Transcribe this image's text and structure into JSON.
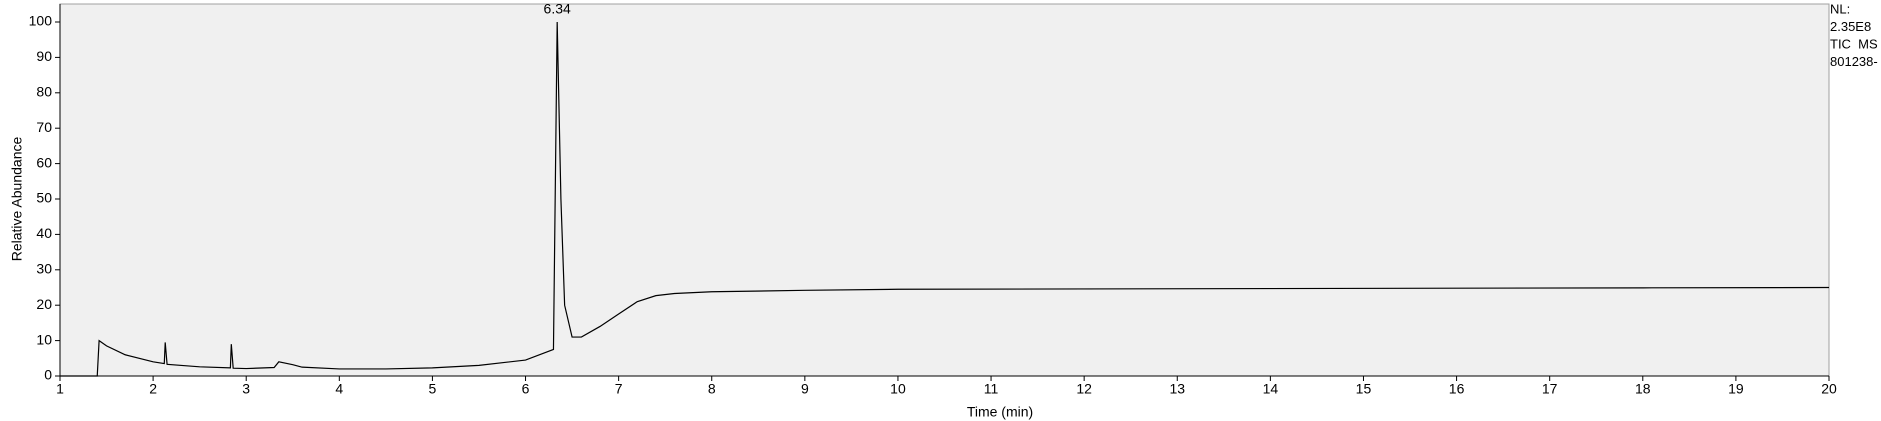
{
  "chart_data": {
    "type": "line",
    "xlabel": "Time (min)",
    "ylabel": "Relative Abundance",
    "annotations": [
      "6.34"
    ],
    "side_labels": [
      "NL:",
      "2.35E8",
      "TIC  MS",
      "801238-"
    ],
    "x": [
      1.0,
      1.4,
      1.42,
      1.5,
      1.7,
      2.0,
      2.12,
      2.13,
      2.15,
      2.5,
      2.83,
      2.84,
      2.86,
      3.0,
      3.3,
      3.35,
      3.5,
      3.6,
      4.0,
      4.5,
      5.0,
      5.5,
      6.0,
      6.3,
      6.34,
      6.38,
      6.42,
      6.5,
      6.6,
      6.8,
      7.0,
      7.2,
      7.4,
      7.6,
      8.0,
      9.0,
      10.0,
      12.0,
      14.0,
      16.0,
      18.0,
      20.0
    ],
    "values": [
      0,
      0,
      10,
      8.5,
      6,
      4,
      3.5,
      9.5,
      3.3,
      2.6,
      2.3,
      9,
      2.2,
      2.1,
      2.4,
      4,
      3.2,
      2.5,
      2.0,
      2.0,
      2.3,
      3.0,
      4.5,
      7.5,
      100,
      50,
      20,
      11,
      11,
      14,
      17.5,
      21,
      22.7,
      23.3,
      23.8,
      24.2,
      24.5,
      24.6,
      24.7,
      24.8,
      24.9,
      25
    ],
    "color": "#000000",
    "xlim": [
      1,
      20
    ],
    "ylim": [
      0,
      100
    ],
    "xticks": [
      1,
      2,
      3,
      4,
      5,
      6,
      7,
      8,
      9,
      10,
      11,
      12,
      13,
      14,
      15,
      16,
      17,
      18,
      19,
      20
    ],
    "yticks": [
      0,
      10,
      20,
      30,
      40,
      50,
      60,
      70,
      80,
      90,
      100
    ]
  }
}
